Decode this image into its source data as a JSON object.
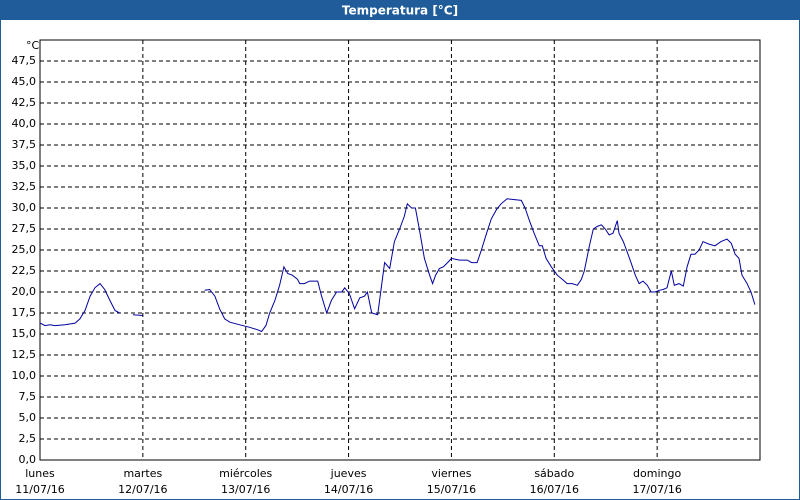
{
  "chart_data": {
    "type": "line",
    "title": "Temperatura [°C]",
    "y_unit": "°C",
    "color": "#0000a0",
    "grid": true,
    "xlim": [
      0,
      168
    ],
    "xticks": [
      {
        "value": 0,
        "label": "lunes"
      },
      {
        "value": 24,
        "label": "martes"
      },
      {
        "value": 48,
        "label": "miércoles"
      },
      {
        "value": 72,
        "label": "jueves"
      },
      {
        "value": 96,
        "label": "viernes"
      },
      {
        "value": 120,
        "label": "sábado"
      },
      {
        "value": 144,
        "label": "domingo"
      }
    ],
    "xtick_dates": [
      "11/07/16",
      "12/07/16",
      "13/07/16",
      "14/07/16",
      "15/07/16",
      "16/07/16",
      "17/07/16"
    ],
    "ylim": [
      0,
      50
    ],
    "yticks": [
      {
        "value": 0,
        "label": "0,0"
      },
      {
        "value": 2.5,
        "label": "2,5"
      },
      {
        "value": 5,
        "label": "5,0"
      },
      {
        "value": 7.5,
        "label": "7,5"
      },
      {
        "value": 10,
        "label": "10,0"
      },
      {
        "value": 12.5,
        "label": "12,5"
      },
      {
        "value": 15,
        "label": "15,0"
      },
      {
        "value": 17.5,
        "label": "17,5"
      },
      {
        "value": 20,
        "label": "20,0"
      },
      {
        "value": 22.5,
        "label": "22,5"
      },
      {
        "value": 25,
        "label": "25,0"
      },
      {
        "value": 27.5,
        "label": "27,5"
      },
      {
        "value": 30,
        "label": "30,0"
      },
      {
        "value": 32.5,
        "label": "32,5"
      },
      {
        "value": 35,
        "label": "35,0"
      },
      {
        "value": 37.5,
        "label": "37,5"
      },
      {
        "value": 40,
        "label": "40,0"
      },
      {
        "value": 42.5,
        "label": "42,5"
      },
      {
        "value": 45,
        "label": "45,0"
      },
      {
        "value": 47.5,
        "label": "47,5"
      }
    ],
    "x": [
      0,
      1.2,
      2.3,
      3.5,
      5.8,
      8.2,
      9.3,
      10.5,
      11.7,
      12.8,
      14,
      15.1,
      16.3,
      17.5,
      18.6,
      20,
      21.7,
      24,
      31,
      38.4,
      39.6,
      40.8,
      41.9,
      43.1,
      44.3,
      46.6,
      48.9,
      50.8,
      51.7,
      52.7,
      53.6,
      54.8,
      55.9,
      56.9,
      57.8,
      58.9,
      60.1,
      60.6,
      61.7,
      62.9,
      64.8,
      65.7,
      66.9,
      68,
      69.2,
      70.4,
      71.1,
      72.2,
      73.4,
      74.6,
      75.7,
      76.4,
      77.4,
      78.8,
      80.4,
      81.6,
      82.7,
      83.9,
      85,
      85.7,
      86.7,
      87.6,
      88.5,
      89.7,
      90.9,
      91.6,
      92.3,
      93.2,
      94.1,
      95.1,
      96,
      97.9,
      99.7,
      100.7,
      102,
      103,
      104.2,
      105.3,
      106.5,
      107.6,
      109,
      110.7,
      112.3,
      113.2,
      114.2,
      115.3,
      116.5,
      117.2,
      118.1,
      119.3,
      120.7,
      121.9,
      123,
      124.2,
      125.4,
      126.3,
      127,
      128.2,
      129.1,
      130,
      131,
      131.9,
      132.8,
      133.7,
      134.7,
      135.1,
      136.1,
      137,
      137.9,
      138.9,
      139.8,
      140.7,
      141.7,
      142.6,
      143.5,
      144.5,
      145.4,
      146.3,
      147.3,
      148,
      149.1,
      150.1,
      151,
      151.9,
      152.8,
      153.8,
      154.7,
      156.1,
      157.5,
      158.9,
      160.3,
      161.3,
      162.2,
      163.1,
      163.8,
      165,
      165.9,
      166.8
    ],
    "values": [
      16.3,
      16,
      16.1,
      16,
      16.1,
      16.3,
      16.8,
      17.8,
      19.5,
      20.5,
      21,
      20.3,
      19,
      17.8,
      17.5,
      null,
      17.3,
      17.2,
      null,
      20.2,
      20.3,
      19.5,
      18,
      16.8,
      16.4,
      16.1,
      15.8,
      15.5,
      15.3,
      16,
      17.5,
      19,
      20.8,
      23,
      22.2,
      22,
      21.5,
      21,
      21,
      21.3,
      21.3,
      19.5,
      17.5,
      19,
      20,
      20,
      20.5,
      19.8,
      18,
      19.3,
      19.5,
      20,
      17.5,
      17.3,
      23.5,
      22.8,
      26,
      27.5,
      29,
      30.5,
      30,
      30,
      27.5,
      24,
      22,
      21,
      22,
      22.8,
      23,
      23.5,
      24,
      23.8,
      23.8,
      23.5,
      23.5,
      25,
      27,
      28.7,
      29.8,
      30.5,
      31.1,
      31,
      30.9,
      30,
      28.5,
      27,
      25.5,
      25.5,
      24,
      23,
      22,
      21.5,
      21,
      21,
      20.8,
      21.5,
      22.5,
      25.5,
      27.5,
      27.8,
      28,
      27.5,
      26.8,
      27,
      28.5,
      27,
      26,
      24.8,
      23.5,
      22,
      21,
      21.3,
      20.8,
      20,
      20,
      20.2,
      20.3,
      20.5,
      22.5,
      20.8,
      21,
      20.7,
      23,
      24.5,
      24.5,
      25,
      26,
      25.7,
      25.5,
      26,
      26.3,
      25.8,
      24.5,
      24,
      22,
      21,
      20,
      18.5
    ]
  }
}
